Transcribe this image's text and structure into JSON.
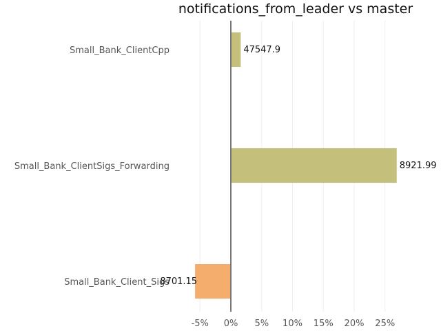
{
  "chart_data": {
    "type": "bar",
    "orientation": "horizontal",
    "title": "notifications_from_leader vs master",
    "xlabel": "",
    "ylabel": "",
    "categories": [
      "Small_Bank_ClientCpp",
      "Small_Bank_ClientSigs_Forwarding",
      "Small_Bank_Client_Sigs"
    ],
    "values": [
      1.6,
      26.9,
      -5.8
    ],
    "data_labels": [
      "47547.9",
      "8921.99",
      "8701.15"
    ],
    "colors": [
      "#c4c07c",
      "#c4c07c",
      "#f5ad6e"
    ],
    "xlim": [
      -6.5,
      27.5
    ],
    "x_ticks": [
      -5,
      0,
      5,
      10,
      15,
      20,
      25
    ],
    "x_tick_labels": [
      "-5%",
      "0%",
      "5%",
      "10%",
      "15%",
      "20%",
      "25%"
    ],
    "grid": true,
    "legend": "none"
  }
}
